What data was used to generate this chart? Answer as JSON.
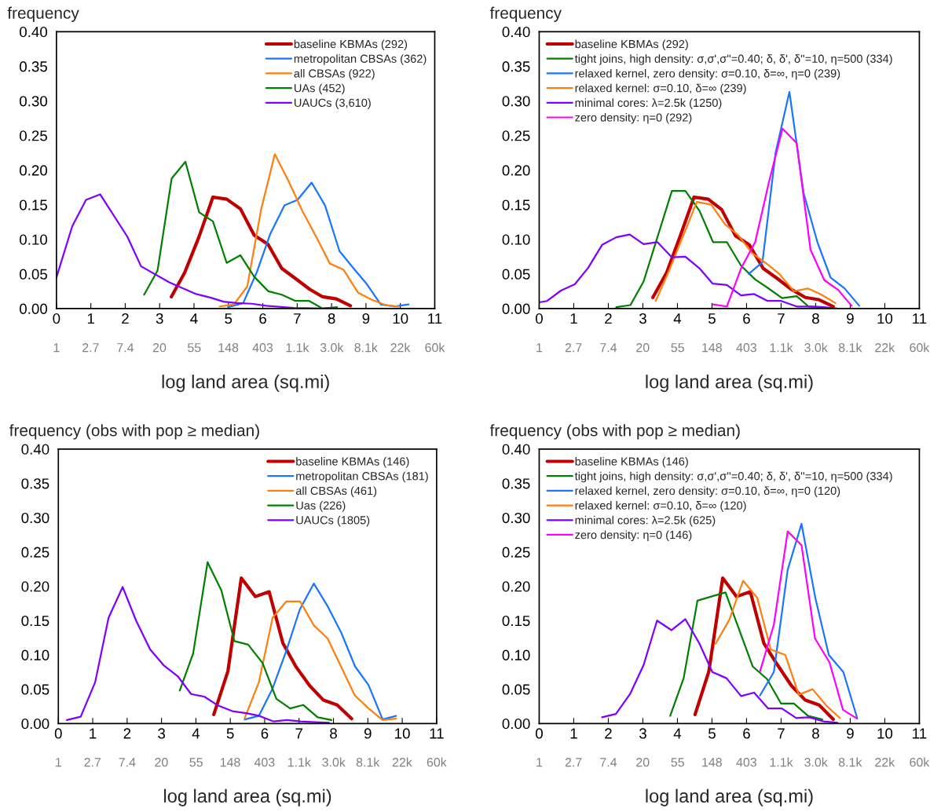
{
  "chart_data": [
    {
      "type": "line",
      "log": "x2",
      "ylabel": "frequency",
      "xlabel": "log land area (sq.mi)",
      "xlim": [
        0,
        11
      ],
      "ylim": [
        0,
        0.4
      ],
      "legend": "top right",
      "grid": false,
      "marker": "none",
      "line_style": "solid",
      "xticks": [
        0,
        1,
        2,
        3,
        4,
        5,
        6,
        7,
        8,
        9,
        10,
        11
      ],
      "yticks": [
        {
          "value": 0,
          "label": "0.00"
        },
        {
          "value": 0.05,
          "label": "0.05"
        },
        {
          "value": 0.1,
          "label": "0.10"
        },
        {
          "value": 0.15,
          "label": "0.15"
        },
        {
          "value": 0.2,
          "label": "0.20"
        },
        {
          "value": 0.25,
          "label": "0.25"
        },
        {
          "value": 0.3,
          "label": "0.30"
        },
        {
          "value": 0.35,
          "label": "0.35"
        },
        {
          "value": 0.4,
          "label": "0.40"
        }
      ],
      "x2lim": [
        1,
        60000
      ],
      "x2ticks": [
        1,
        2.7,
        7.4,
        20,
        55,
        148,
        403,
        {
          "value": 1100,
          "label": "1.1k"
        },
        {
          "value": 3000,
          "label": "3.0k"
        },
        {
          "value": 8100,
          "label": "8.1k"
        },
        {
          "value": 22000,
          "label": "22k"
        },
        {
          "value": 60000,
          "label": "60k"
        }
      ],
      "series": [
        {
          "name": "baseline KBMAs (292)",
          "color": "#c00000",
          "x": [
            3.34,
            3.73,
            4.14,
            4.55,
            4.95,
            5.35,
            5.75,
            6.15,
            6.55,
            6.96,
            7.36,
            7.74,
            8.14,
            8.55
          ],
          "values": [
            0.017,
            0.052,
            0.103,
            0.161,
            0.158,
            0.144,
            0.106,
            0.093,
            0.058,
            0.043,
            0.028,
            0.017,
            0.014,
            0.004
          ]
        },
        {
          "name": "metropolitan CBSAs (362)",
          "color": "#1a75ff",
          "x": [
            4.99,
            5.43,
            5.83,
            6.21,
            6.63,
            7.01,
            7.42,
            7.81,
            8.23,
            8.64,
            9.03,
            9.43,
            9.83,
            10.24
          ],
          "values": [
            0.002,
            0.008,
            0.053,
            0.107,
            0.149,
            0.157,
            0.182,
            0.149,
            0.083,
            0.058,
            0.035,
            0.006,
            0.003,
            0.006
          ]
        },
        {
          "name": "all CBSAs (922)",
          "color": "#ff7f0e",
          "x": [
            4.75,
            5.16,
            5.55,
            5.95,
            6.35,
            6.75,
            7.16,
            7.55,
            7.95,
            8.35,
            8.77,
            9.16,
            9.57,
            9.95
          ],
          "values": [
            0.003,
            0.006,
            0.032,
            0.143,
            0.223,
            0.184,
            0.14,
            0.104,
            0.065,
            0.056,
            0.023,
            0.013,
            0.005,
            0.003
          ]
        },
        {
          "name": "UAs (452)",
          "color": "#008000",
          "x": [
            2.55,
            2.94,
            3.35,
            3.75,
            4.15,
            4.55,
            4.95,
            5.35,
            5.75,
            6.16,
            6.55,
            6.95,
            7.35,
            7.74,
            8.16
          ],
          "values": [
            0.02,
            0.055,
            0.188,
            0.212,
            0.139,
            0.126,
            0.066,
            0.077,
            0.046,
            0.025,
            0.02,
            0.011,
            0.011,
            0.0,
            0.002
          ]
        },
        {
          "name": "UAUCs (3,610)",
          "color": "#7f00ff",
          "x": [
            0.0,
            0.46,
            0.86,
            1.27,
            2.06,
            2.46,
            3.28,
            4.06,
            4.47,
            4.86,
            5.24,
            5.68,
            6.1,
            6.9,
            7.74,
            8.06
          ],
          "values": [
            0.045,
            0.119,
            0.157,
            0.165,
            0.104,
            0.061,
            0.038,
            0.021,
            0.016,
            0.01,
            0.008,
            0.007,
            0.004,
            0.001,
            0.0,
            0.001
          ]
        }
      ]
    },
    {
      "type": "line",
      "log": "x2",
      "ylabel": "frequency",
      "xlabel": "log land area (sq.mi)",
      "xlim": [
        0,
        11
      ],
      "ylim": [
        0,
        0.4
      ],
      "legend": "top left",
      "grid": false,
      "marker": "none",
      "line_style": "solid",
      "xticks": [
        0,
        1,
        2,
        3,
        4,
        5,
        6,
        7,
        8,
        9,
        10,
        11
      ],
      "yticks": [
        {
          "value": 0,
          "label": "0.00"
        },
        {
          "value": 0.05,
          "label": "0.05"
        },
        {
          "value": 0.1,
          "label": "0.10"
        },
        {
          "value": 0.15,
          "label": "0.15"
        },
        {
          "value": 0.2,
          "label": "0.20"
        },
        {
          "value": 0.25,
          "label": "0.25"
        },
        {
          "value": 0.3,
          "label": "0.30"
        },
        {
          "value": 0.35,
          "label": "0.35"
        },
        {
          "value": 0.4,
          "label": "0.40"
        }
      ],
      "x2lim": [
        1,
        60000
      ],
      "x2ticks": [
        1,
        2.7,
        7.4,
        20,
        55,
        148,
        403,
        {
          "value": 1100,
          "label": "1.1k"
        },
        {
          "value": 3000,
          "label": "3.0k"
        },
        {
          "value": 8100,
          "label": "8.1k"
        },
        {
          "value": 22000,
          "label": "22k"
        },
        {
          "value": 60000,
          "label": "60k"
        }
      ],
      "series": [
        {
          "name": "baseline KBMAs (292)",
          "color": "#c00000",
          "x": [
            3.29,
            3.69,
            4.09,
            4.48,
            4.89,
            5.28,
            5.68,
            6.08,
            6.48,
            6.9,
            7.29,
            7.7,
            8.08,
            8.51
          ],
          "values": [
            0.016,
            0.052,
            0.106,
            0.161,
            0.158,
            0.143,
            0.105,
            0.092,
            0.058,
            0.043,
            0.028,
            0.016,
            0.013,
            0.003
          ]
        },
        {
          "name": "tight joins, high density: σ,σ',σ''=0.40; δ, δ', δ''=10, η=500 (334)",
          "color": "#008000",
          "x": [
            2.23,
            2.64,
            3.02,
            3.84,
            4.23,
            4.64,
            5.03,
            5.43,
            5.84,
            6.25,
            6.61,
            7.03,
            7.45,
            7.79,
            8.21
          ],
          "values": [
            0.002,
            0.005,
            0.039,
            0.17,
            0.17,
            0.141,
            0.096,
            0.096,
            0.062,
            0.042,
            0.03,
            0.015,
            0.018,
            0.003,
            0.002
          ]
        },
        {
          "name": "relaxed kernel, zero density: σ=0.10, δ=∞, η=0 (239)",
          "color": "#1a75ff",
          "x": [
            6.06,
            6.46,
            6.84,
            7.24,
            7.65,
            8.05,
            8.43,
            8.84,
            9.26
          ],
          "values": [
            0.05,
            0.067,
            0.225,
            0.313,
            0.167,
            0.096,
            0.045,
            0.029,
            0.004
          ]
        },
        {
          "name": "relaxed kernel: σ=0.10, δ=∞ (239)",
          "color": "#ff7f0e",
          "x": [
            3.37,
            3.76,
            4.56,
            4.98,
            5.37,
            5.76,
            6.16,
            6.55,
            6.95,
            7.37,
            7.77,
            8.17,
            8.57
          ],
          "values": [
            0.011,
            0.055,
            0.154,
            0.15,
            0.122,
            0.106,
            0.08,
            0.066,
            0.05,
            0.025,
            0.029,
            0.02,
            0.008
          ]
        },
        {
          "name": "minimal cores: λ=2.5k (1250)",
          "color": "#7f00ff",
          "x": [
            0,
            0.23,
            0.63,
            1.03,
            1.42,
            1.82,
            2.23,
            2.62,
            3.02,
            3.42,
            3.84,
            4.23,
            4.64,
            5.02,
            5.43,
            5.84,
            6.22,
            6.61,
            7.0,
            7.45,
            7.83,
            8.24,
            8.62
          ],
          "values": [
            0.009,
            0.011,
            0.026,
            0.035,
            0.059,
            0.092,
            0.103,
            0.107,
            0.093,
            0.096,
            0.074,
            0.075,
            0.058,
            0.036,
            0.034,
            0.019,
            0.021,
            0.011,
            0.011,
            0.003,
            0.003,
            0.002,
            0.0
          ]
        },
        {
          "name": "zero density: η=0 (292)",
          "color": "#ff00ff",
          "x": [
            5.03,
            5.43,
            5.84,
            6.25,
            6.65,
            7.04,
            7.45,
            7.85,
            8.25,
            8.65,
            9.04
          ],
          "values": [
            0.006,
            0.003,
            0.058,
            0.096,
            0.183,
            0.26,
            0.239,
            0.085,
            0.041,
            0.027,
            0.004
          ]
        }
      ]
    },
    {
      "type": "line",
      "log": "x2",
      "ylabel": "frequency (obs with pop ≥ median)",
      "xlabel": "log land area (sq.mi)",
      "xlim": [
        0,
        11
      ],
      "ylim": [
        0,
        0.4
      ],
      "legend": "top right",
      "grid": false,
      "marker": "none",
      "line_style": "solid",
      "xticks": [
        0,
        1,
        2,
        3,
        4,
        5,
        6,
        7,
        8,
        9,
        10,
        11
      ],
      "yticks": [
        {
          "value": 0,
          "label": "0.00"
        },
        {
          "value": 0.05,
          "label": "0.05"
        },
        {
          "value": 0.1,
          "label": "0.10"
        },
        {
          "value": 0.15,
          "label": "0.15"
        },
        {
          "value": 0.2,
          "label": "0.20"
        },
        {
          "value": 0.25,
          "label": "0.25"
        },
        {
          "value": 0.3,
          "label": "0.30"
        },
        {
          "value": 0.35,
          "label": "0.35"
        },
        {
          "value": 0.4,
          "label": "0.40"
        }
      ],
      "x2lim": [
        1,
        60000
      ],
      "x2ticks": [
        1,
        2.7,
        7.4,
        20,
        55,
        148,
        403,
        {
          "value": 1100,
          "label": "1.1k"
        },
        {
          "value": 3000,
          "label": "3.0k"
        },
        {
          "value": 8100,
          "label": "8.1k"
        },
        {
          "value": 22000,
          "label": "22k"
        },
        {
          "value": 60000,
          "label": "60k"
        }
      ],
      "series": [
        {
          "name": "baseline KBMAs (146)",
          "color": "#c00000",
          "x": [
            4.52,
            4.93,
            5.32,
            5.73,
            6.13,
            6.53,
            6.92,
            7.31,
            7.71,
            8.11,
            8.53
          ],
          "values": [
            0.013,
            0.076,
            0.212,
            0.185,
            0.192,
            0.117,
            0.082,
            0.055,
            0.034,
            0.027,
            0.007
          ]
        },
        {
          "name": "metropolitan CBSAs (181)",
          "color": "#1a75ff",
          "x": [
            5.42,
            5.83,
            6.23,
            6.63,
            7.02,
            7.43,
            7.83,
            8.23,
            8.63,
            9.02,
            9.43,
            9.82
          ],
          "values": [
            0.006,
            0.011,
            0.051,
            0.106,
            0.166,
            0.204,
            0.171,
            0.132,
            0.083,
            0.056,
            0.006,
            0.011
          ]
        },
        {
          "name": "all CBSAs (461)",
          "color": "#ff7f0e",
          "x": [
            5.42,
            5.83,
            6.23,
            6.63,
            7.03,
            7.43,
            7.83,
            8.23,
            8.62,
            9.02,
            9.43,
            9.82
          ],
          "values": [
            0.008,
            0.06,
            0.154,
            0.178,
            0.178,
            0.143,
            0.124,
            0.082,
            0.041,
            0.022,
            0.005,
            0.007
          ]
        },
        {
          "name": "Uas (226)",
          "color": "#008000",
          "x": [
            3.53,
            3.92,
            4.34,
            4.74,
            5.12,
            5.52,
            5.94,
            6.34,
            6.74,
            7.12,
            7.54,
            7.94
          ],
          "values": [
            0.048,
            0.102,
            0.235,
            0.194,
            0.12,
            0.115,
            0.088,
            0.036,
            0.022,
            0.027,
            0.009,
            0.005
          ]
        },
        {
          "name": "UAUCs (1805)",
          "color": "#7f00ff",
          "x": [
            0.25,
            0.65,
            1.07,
            1.46,
            1.87,
            2.26,
            2.67,
            3.06,
            3.47,
            3.86,
            4.25,
            4.65,
            5.06,
            5.46,
            5.85,
            6.26,
            6.65,
            7.04,
            7.46,
            7.87
          ],
          "values": [
            0.005,
            0.01,
            0.06,
            0.154,
            0.199,
            0.15,
            0.108,
            0.085,
            0.069,
            0.043,
            0.039,
            0.026,
            0.018,
            0.015,
            0.011,
            0.003,
            0.005,
            0.003,
            0.002,
            0.001
          ]
        }
      ]
    },
    {
      "type": "line",
      "log": "x2",
      "ylabel": "frequency (obs with pop ≥ median)",
      "xlabel": "log land area (sq.mi)",
      "xlim": [
        0,
        11
      ],
      "ylim": [
        0,
        0.4
      ],
      "legend": "top left",
      "grid": false,
      "marker": "none",
      "line_style": "solid",
      "xticks": [
        0,
        1,
        2,
        3,
        4,
        5,
        6,
        7,
        8,
        9,
        10,
        11
      ],
      "yticks": [
        {
          "value": 0,
          "label": "0.00"
        },
        {
          "value": 0.05,
          "label": "0.05"
        },
        {
          "value": 0.1,
          "label": "0.10"
        },
        {
          "value": 0.15,
          "label": "0.15"
        },
        {
          "value": 0.2,
          "label": "0.20"
        },
        {
          "value": 0.25,
          "label": "0.25"
        },
        {
          "value": 0.3,
          "label": "0.30"
        },
        {
          "value": 0.35,
          "label": "0.35"
        },
        {
          "value": 0.4,
          "label": "0.40"
        }
      ],
      "x2lim": [
        1,
        60000
      ],
      "x2ticks": [
        1,
        2.7,
        7.4,
        20,
        55,
        148,
        403,
        {
          "value": 1100,
          "label": "1.1k"
        },
        {
          "value": 3000,
          "label": "3.0k"
        },
        {
          "value": 8100,
          "label": "8.1k"
        },
        {
          "value": 22000,
          "label": "22k"
        },
        {
          "value": 60000,
          "label": "60k"
        }
      ],
      "series": [
        {
          "name": "baseline KBMAs (146)",
          "color": "#c00000",
          "x": [
            4.51,
            4.91,
            5.31,
            5.71,
            6.11,
            6.5,
            6.9,
            7.3,
            7.7,
            8.1,
            8.51
          ],
          "values": [
            0.013,
            0.076,
            0.212,
            0.185,
            0.192,
            0.117,
            0.085,
            0.055,
            0.034,
            0.027,
            0.006
          ]
        },
        {
          "name": "tight joins, high density: σ,σ',σ''=0.40; δ, δ', δ''=10, η=500 (334)",
          "color": "#008000",
          "x": [
            3.79,
            4.18,
            4.58,
            4.98,
            5.39,
            6.18,
            6.59,
            7.0,
            7.37,
            7.78,
            8.19
          ],
          "values": [
            0.011,
            0.066,
            0.179,
            0.185,
            0.191,
            0.083,
            0.065,
            0.029,
            0.029,
            0.011,
            0.006
          ]
        },
        {
          "name": "relaxed kernel, zero density: σ=0.10, δ=∞, η=0 (120)",
          "color": "#1a75ff",
          "x": [
            6.39,
            6.79,
            7.19,
            7.59,
            7.99,
            8.38,
            8.8,
            9.2
          ],
          "values": [
            0.041,
            0.075,
            0.224,
            0.291,
            0.183,
            0.1,
            0.075,
            0.008
          ]
        },
        {
          "name": "relaxed kernel: σ=0.10, δ=∞ (120)",
          "color": "#ff7f0e",
          "x": [
            5.1,
            5.5,
            5.9,
            6.31,
            6.7,
            7.12,
            7.51,
            7.91,
            8.31,
            8.7
          ],
          "values": [
            0.116,
            0.151,
            0.208,
            0.183,
            0.108,
            0.1,
            0.042,
            0.05,
            0.026,
            0.008
          ]
        },
        {
          "name": "minimal cores: λ=2.5k (625)",
          "color": "#7f00ff",
          "x": [
            1.82,
            2.22,
            2.63,
            3.02,
            3.41,
            3.83,
            4.23,
            4.63,
            5.01,
            5.42,
            5.84,
            6.22,
            6.62,
            7.02,
            7.44,
            7.81,
            8.23,
            8.63
          ],
          "values": [
            0.009,
            0.014,
            0.043,
            0.085,
            0.15,
            0.136,
            0.152,
            0.117,
            0.075,
            0.066,
            0.04,
            0.045,
            0.022,
            0.022,
            0.008,
            0.009,
            0.003,
            0.001
          ]
        },
        {
          "name": "zero density: η=0 (146)",
          "color": "#ff00ff",
          "x": [
            6.39,
            6.79,
            7.19,
            7.59,
            7.98,
            8.4,
            8.79,
            9.2
          ],
          "values": [
            0.076,
            0.144,
            0.28,
            0.26,
            0.124,
            0.089,
            0.02,
            0.007
          ]
        }
      ]
    }
  ]
}
